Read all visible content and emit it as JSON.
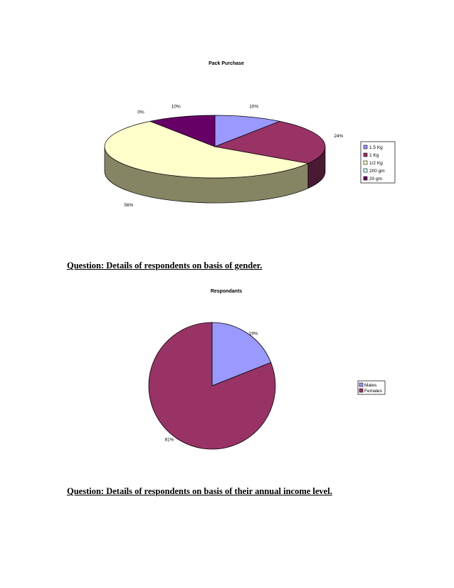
{
  "chart_data": [
    {
      "type": "pie",
      "title": "Pack Purchase",
      "categories": [
        "1.5 Kg",
        "1 Kg",
        "1/2 Kg",
        "200 gm",
        "20 gm"
      ],
      "values": [
        10,
        24,
        56,
        0,
        10
      ],
      "labels": [
        "10%",
        "24%",
        "56%",
        "0%",
        "10%"
      ],
      "colors": [
        "#9999FF",
        "#993366",
        "#FFFFCC",
        "#CCFFFF",
        "#660066"
      ],
      "side_colors": [
        "#6B6BB2",
        "#4A1A33",
        "#858564",
        "#7FA3A3",
        "#330033"
      ],
      "style": "3d",
      "legend_position": "right"
    },
    {
      "type": "pie",
      "title": "Respondants",
      "categories": [
        "Males",
        "Females"
      ],
      "values": [
        19,
        81
      ],
      "labels": [
        "19%",
        "81%"
      ],
      "colors": [
        "#9999FF",
        "#993366"
      ],
      "legend_position": "right"
    }
  ],
  "questions": {
    "gender": "Question: Details of respondents on basis of gender.",
    "income": "Question: Details of respondents on basis of their annual income level."
  }
}
